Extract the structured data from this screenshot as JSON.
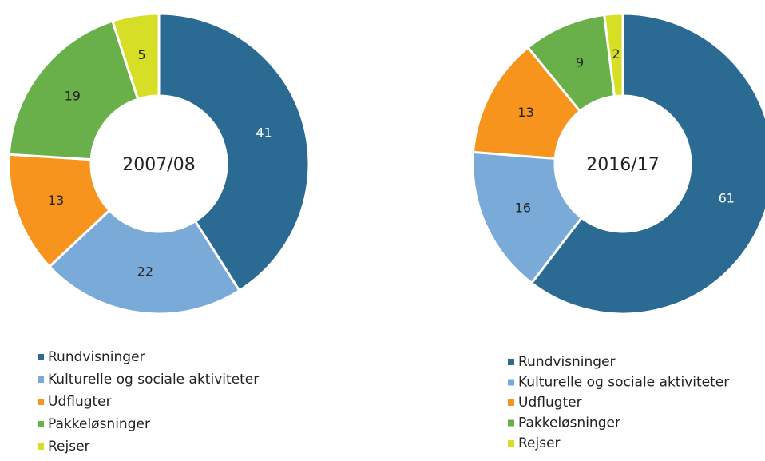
{
  "chart_data": [
    {
      "type": "pie",
      "title": "2007/08",
      "categories": [
        "Rundvisninger",
        "Kulturelle og sociale aktiviteter",
        "Udflugter",
        "Pakkeløsninger",
        "Rejser"
      ],
      "values": [
        41,
        22,
        13,
        19,
        5
      ],
      "colors": [
        "#2b6a93",
        "#7aaad7",
        "#f7941e",
        "#69b04a",
        "#d6df26"
      ]
    },
    {
      "type": "pie",
      "title": "2016/17",
      "categories": [
        "Rundvisninger",
        "Kulturelle og sociale aktiviteter",
        "Udflugter",
        "Pakkeløsninger",
        "Rejser"
      ],
      "values": [
        61,
        16,
        13,
        9,
        2
      ],
      "colors": [
        "#2b6a93",
        "#7aaad7",
        "#f7941e",
        "#69b04a",
        "#d6df26"
      ]
    }
  ]
}
